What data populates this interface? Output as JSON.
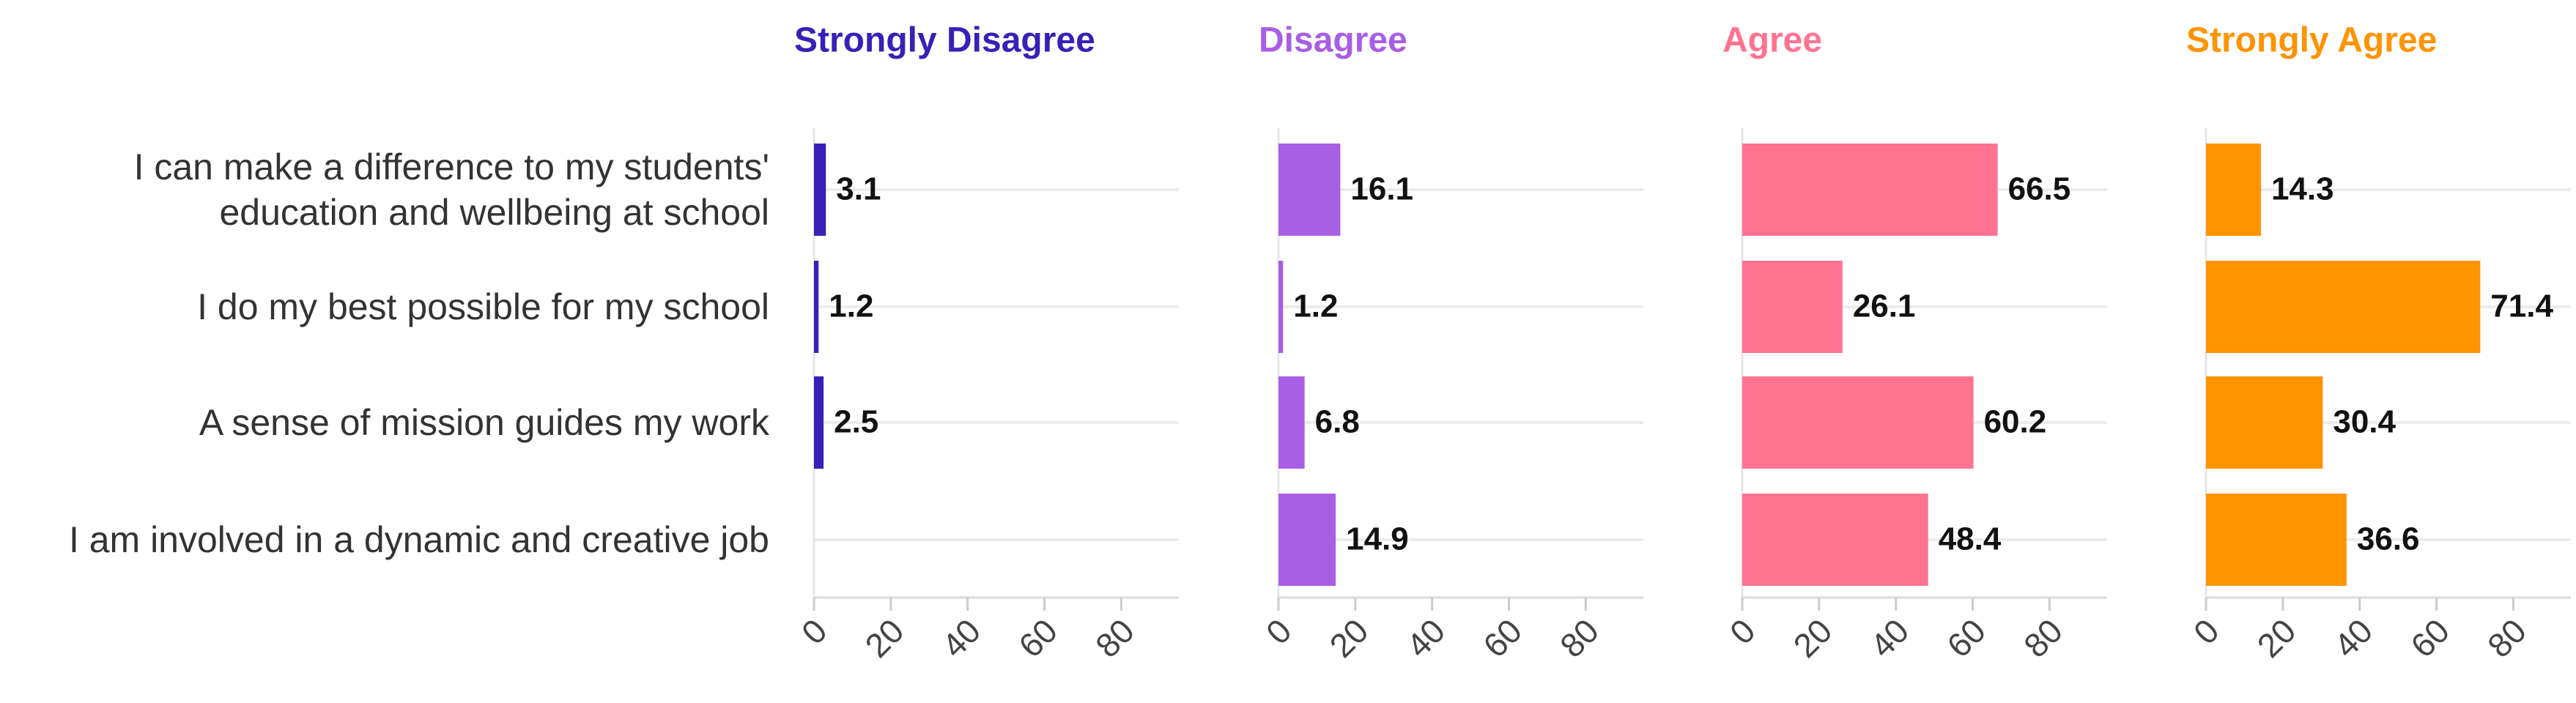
{
  "chart_data": {
    "type": "bar",
    "orientation": "horizontal",
    "categories": [
      "I can make a difference to my students' education and wellbeing at school",
      "I do my best possible for my school",
      "A sense of mission guides my work",
      "I am involved in a dynamic and creative job"
    ],
    "series": [
      {
        "name": "Strongly Disagree",
        "color": "#3a1fb8",
        "values": [
          3.1,
          1.2,
          2.5,
          null
        ]
      },
      {
        "name": "Disagree",
        "color": "#a95ee6",
        "values": [
          16.1,
          1.2,
          6.8,
          14.9
        ]
      },
      {
        "name": "Agree",
        "color": "#ff7391",
        "values": [
          66.5,
          26.1,
          60.2,
          48.4
        ]
      },
      {
        "name": "Strongly Agree",
        "color": "#ff9300",
        "values": [
          14.3,
          71.4,
          30.4,
          36.6
        ]
      }
    ],
    "xlim": [
      0,
      95
    ],
    "xticks": [
      0,
      20,
      40,
      60,
      80
    ],
    "grid": true
  }
}
